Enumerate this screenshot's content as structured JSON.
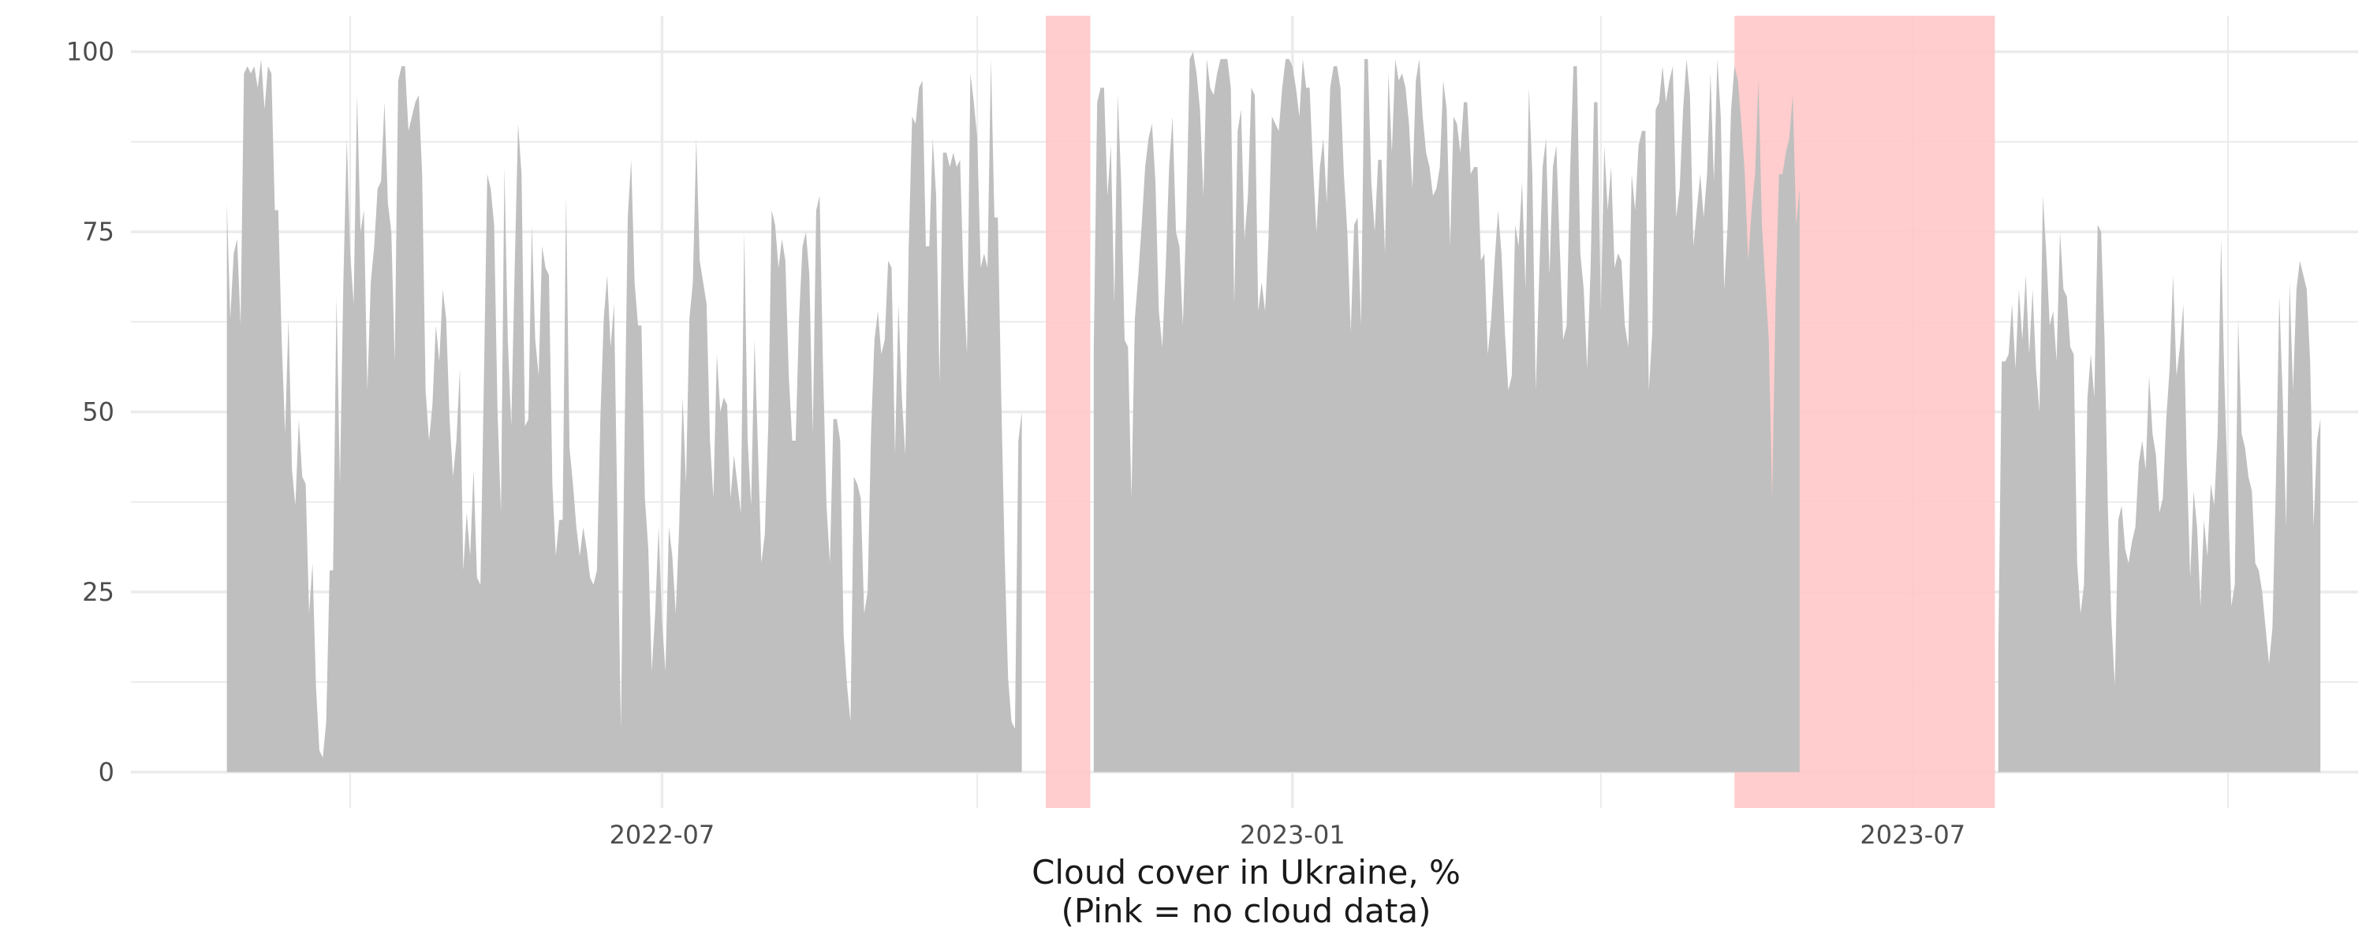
{
  "chart_data": {
    "type": "area",
    "title": "",
    "xlabel": [
      "Cloud cover in Ukraine, %",
      "(Pink = no cloud data)"
    ],
    "ylabel": "",
    "ylim": [
      -5,
      105
    ],
    "xlim": [
      "2022-01-27",
      "2023-11-08"
    ],
    "yticks": [
      0,
      25,
      50,
      75,
      100
    ],
    "xticks": [
      "2022-04-01",
      "2022-07-01",
      "2022-10-01",
      "2023-01-01",
      "2023-04-01",
      "2023-07-01",
      "2023-10-01"
    ],
    "xtick_labels": [
      "2022-07",
      "2023-01",
      "2023-07"
    ],
    "xtick_label_dates": [
      "2022-07-01",
      "2023-01-01",
      "2023-07-01"
    ],
    "grid": true,
    "colors": {
      "area": "#bfbfbf",
      "missing_band": "#ffc8c8",
      "grid": "#ebebeb"
    },
    "missing_periods": [
      {
        "start": "2022-10-21",
        "end": "2022-11-03"
      },
      {
        "start": "2023-05-10",
        "end": "2023-07-25"
      }
    ],
    "series": [
      {
        "segments": [
          {
            "start": "2022-02-24",
            "values": [
              79,
              63,
              72,
              74,
              62,
              97,
              98,
              97,
              98,
              95,
              99,
              92,
              98,
              97,
              78,
              78,
              60,
              47,
              63,
              42,
              37,
              49,
              41,
              40,
              22,
              29,
              12,
              3,
              2,
              7,
              28,
              28,
              66,
              40,
              68,
              88,
              72,
              65,
              94,
              75,
              78,
              53,
              68,
              73,
              81,
              82,
              93,
              79,
              75,
              57,
              96,
              98,
              98,
              89,
              91,
              93,
              94,
              83,
              53,
              46,
              51,
              62,
              57,
              67,
              63,
              49,
              41,
              46,
              56,
              28,
              36,
              30,
              42,
              27,
              26,
              54,
              83,
              81,
              76,
              50,
              36,
              84,
              60,
              48,
              70,
              90,
              83,
              48,
              49,
              76,
              60,
              55,
              73,
              70,
              69,
              40,
              30,
              35,
              35,
              80,
              45,
              40,
              34,
              30,
              34,
              31,
              27,
              26,
              28,
              49,
              63,
              69,
              59,
              65,
              35,
              6,
              44,
              77,
              85,
              68,
              62,
              62,
              38,
              31,
              14,
              22,
              34,
              21,
              14,
              34,
              30,
              22,
              34,
              52,
              40,
              63,
              68,
              88,
              71,
              68,
              65,
              46,
              38,
              58,
              50,
              52,
              51,
              38,
              44,
              40,
              36,
              75,
              46,
              37,
              60,
              45,
              29,
              33,
              48,
              78,
              76,
              70,
              74,
              71,
              55,
              46,
              46,
              63,
              73,
              75,
              69,
              47,
              78,
              80,
              56,
              37,
              29,
              49,
              49,
              46,
              19,
              12,
              7,
              41,
              40,
              38,
              22,
              25,
              47,
              60,
              64,
              58,
              60,
              71,
              70,
              44,
              65,
              52,
              44,
              73,
              91,
              90,
              95,
              96,
              73,
              73,
              88,
              80,
              54,
              86,
              86,
              84,
              86,
              84,
              85,
              68,
              58,
              97,
              93,
              88,
              70,
              72,
              70,
              99,
              77,
              77,
              52,
              30,
              13,
              7,
              6,
              46,
              50
            ]
          },
          {
            "start": "2022-11-04",
            "values": [
              59,
              93,
              95,
              95,
              80,
              87,
              65,
              94,
              82,
              60,
              59,
              38,
              63,
              69,
              76,
              84,
              88,
              90,
              82,
              64,
              59,
              70,
              84,
              91,
              75,
              73,
              62,
              77,
              99,
              100,
              97,
              92,
              80,
              99,
              95,
              94,
              97,
              99,
              99,
              99,
              95,
              65,
              89,
              92,
              74,
              80,
              95,
              94,
              64,
              68,
              64,
              74,
              91,
              90,
              89,
              95,
              99,
              99,
              98,
              95,
              91,
              99,
              95,
              95,
              84,
              75,
              84,
              88,
              79,
              95,
              98,
              98,
              95,
              83,
              75,
              61,
              76,
              77,
              62,
              99,
              99,
              82,
              75,
              85,
              85,
              72,
              97,
              86,
              99,
              96,
              97,
              95,
              90,
              81,
              96,
              99,
              91,
              86,
              84,
              80,
              81,
              84,
              96,
              92,
              73,
              91,
              90,
              86,
              93,
              93,
              83,
              84,
              84,
              71,
              72,
              58,
              63,
              71,
              78,
              72,
              61,
              53,
              55,
              76,
              73,
              82,
              67,
              95,
              83,
              53,
              69,
              84,
              88,
              69,
              84,
              87,
              73,
              60,
              62,
              83,
              98,
              98,
              72,
              67,
              56,
              70,
              93,
              93,
              64,
              87,
              78,
              84,
              70,
              72,
              71,
              62,
              59,
              83,
              78,
              87,
              89,
              89,
              53,
              61,
              92,
              93,
              98,
              93,
              96,
              98,
              77,
              81,
              92,
              99,
              94,
              73,
              78,
              83,
              77,
              83,
              97,
              82,
              99,
              91,
              67,
              76,
              92,
              98,
              96,
              90,
              83,
              71,
              78,
              83,
              96,
              76,
              68,
              60,
              38,
              66,
              83,
              83,
              86,
              88,
              94,
              76,
              81
            ]
          },
          {
            "start": "2023-07-26",
            "values": [
              17,
              57,
              57,
              58,
              65,
              56,
              67,
              60,
              69,
              58,
              67,
              56,
              50,
              80,
              72,
              62,
              64,
              57,
              75,
              67,
              66,
              59,
              58,
              29,
              22,
              26,
              52,
              58,
              52,
              76,
              75,
              60,
              36,
              21,
              12,
              35,
              37,
              31,
              29,
              32,
              34,
              43,
              46,
              42,
              55,
              47,
              44,
              36,
              38,
              49,
              56,
              69,
              55,
              59,
              65,
              43,
              27,
              39,
              34,
              23,
              35,
              30,
              40,
              37,
              47,
              74,
              54,
              39,
              23,
              26,
              63,
              47,
              45,
              41,
              39,
              29,
              28,
              25,
              20,
              15,
              20,
              40,
              66,
              52,
              34,
              68,
              53,
              67,
              71,
              69,
              67,
              57,
              34,
              46,
              49
            ]
          }
        ]
      }
    ]
  }
}
